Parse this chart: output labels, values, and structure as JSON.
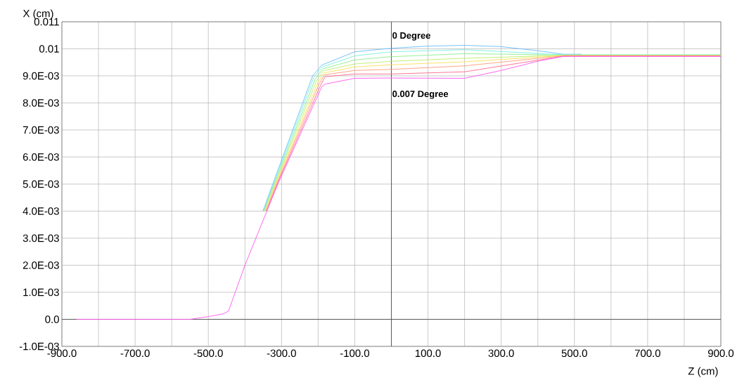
{
  "chart_data": {
    "type": "line",
    "xlabel": "Z (cm)",
    "ylabel": "X (cm)",
    "xlim": [
      -900,
      900
    ],
    "ylim": [
      -0.001,
      0.011
    ],
    "xticks": [
      {
        "value": -900,
        "label": "-900.0"
      },
      {
        "value": -800,
        "label": null
      },
      {
        "value": -700,
        "label": "-700.0"
      },
      {
        "value": -600,
        "label": null
      },
      {
        "value": -500,
        "label": "-500.0"
      },
      {
        "value": -400,
        "label": null
      },
      {
        "value": -300,
        "label": "-300.0"
      },
      {
        "value": -200,
        "label": null
      },
      {
        "value": -100,
        "label": "-100.0"
      },
      {
        "value": 0,
        "label": null
      },
      {
        "value": 100,
        "label": "100.0"
      },
      {
        "value": 200,
        "label": null
      },
      {
        "value": 300,
        "label": "300.0"
      },
      {
        "value": 400,
        "label": null
      },
      {
        "value": 500,
        "label": "500.0"
      },
      {
        "value": 600,
        "label": null
      },
      {
        "value": 700,
        "label": "700.0"
      },
      {
        "value": 800,
        "label": null
      },
      {
        "value": 900,
        "label": "900.0"
      }
    ],
    "yticks": [
      {
        "value": -0.001,
        "label": "-1.0E-03"
      },
      {
        "value": 0,
        "label": "0.0"
      },
      {
        "value": 0.001,
        "label": "1.0E-03"
      },
      {
        "value": 0.002,
        "label": "2.0E-03"
      },
      {
        "value": 0.003,
        "label": "3.0E-03"
      },
      {
        "value": 0.004,
        "label": "4.0E-03"
      },
      {
        "value": 0.005,
        "label": "5.0E-03"
      },
      {
        "value": 0.006,
        "label": "6.0E-03"
      },
      {
        "value": 0.007,
        "label": "7.0E-03"
      },
      {
        "value": 0.008,
        "label": "8.0E-03"
      },
      {
        "value": 0.009,
        "label": "9.0E-03"
      },
      {
        "value": 0.01,
        "label": "0.01"
      },
      {
        "value": 0.011,
        "label": "0.011"
      }
    ],
    "grid": true,
    "marker": "none",
    "line_style": "solid",
    "annotations": [
      "0 Degree",
      "0.007 Degree"
    ],
    "series": [
      {
        "color": "#66bbff",
        "x": [
          -351,
          -324,
          -215,
          -190,
          -100,
          0,
          100,
          200,
          300,
          400,
          470,
          520
        ],
        "values": [
          0.004,
          0.005,
          0.009,
          0.0094,
          0.00989,
          0.01002,
          0.0101,
          0.01013,
          0.01008,
          0.00993,
          0.0098,
          0.0098
        ]
      },
      {
        "color": "#77eedd",
        "x": [
          -349,
          -322,
          -212,
          -189,
          -100,
          0,
          200,
          470,
          900
        ],
        "values": [
          0.004,
          0.005,
          0.00894,
          0.00933,
          0.00974,
          0.00989,
          0.00997,
          0.00978,
          0.00978
        ]
      },
      {
        "color": "#88ee88",
        "x": [
          -348,
          -320,
          -208,
          -187,
          -100,
          0,
          200,
          470,
          900
        ],
        "values": [
          0.004,
          0.005,
          0.00889,
          0.00926,
          0.00959,
          0.00971,
          0.00982,
          0.00977,
          0.00977
        ]
      },
      {
        "color": "#bbee66",
        "x": [
          -346,
          -318,
          -204,
          -186,
          -100,
          0,
          200,
          470,
          900
        ],
        "values": [
          0.004,
          0.005,
          0.00883,
          0.00919,
          0.00944,
          0.00954,
          0.00965,
          0.00976,
          0.00976
        ]
      },
      {
        "color": "#ffdd55",
        "x": [
          -344,
          -316,
          -200,
          -184,
          -100,
          0,
          200,
          470,
          900
        ],
        "values": [
          0.004,
          0.005,
          0.00877,
          0.00911,
          0.00933,
          0.00941,
          0.00952,
          0.00975,
          0.00975
        ]
      },
      {
        "color": "#ff9977",
        "x": [
          -343,
          -314,
          -197,
          -183,
          -100,
          0,
          200,
          470,
          900
        ],
        "values": [
          0.004,
          0.005,
          0.00871,
          0.00904,
          0.0092,
          0.00924,
          0.00937,
          0.00974,
          0.00974
        ]
      },
      {
        "color": "#ff6688",
        "x": [
          -341,
          -312,
          -193,
          -181,
          -100,
          0,
          200,
          470,
          900
        ],
        "values": [
          0.004,
          0.005,
          0.00866,
          0.00897,
          0.00907,
          0.00907,
          0.00915,
          0.00973,
          0.00973
        ]
      },
      {
        "color": "#ff55ee",
        "x": [
          -860,
          -550,
          -500,
          -460,
          -445,
          -400,
          -340,
          -310,
          -190,
          -180,
          -100,
          0,
          200,
          300,
          400,
          470,
          900
        ],
        "values": [
          0,
          0,
          0.0001,
          0.0002,
          0.0003,
          0.002,
          0.004,
          0.005,
          0.0086,
          0.0087,
          0.00891,
          0.00892,
          0.00891,
          0.0092,
          0.00954,
          0.00972,
          0.00972
        ]
      }
    ]
  }
}
